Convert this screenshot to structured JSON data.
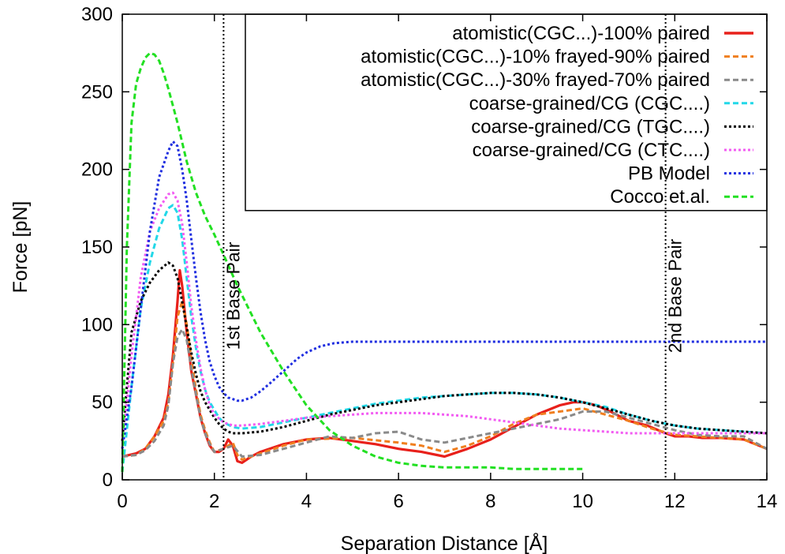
{
  "chart_data": {
    "type": "line",
    "xlabel": "Separation Distance [Å]",
    "ylabel": "Force [pN]",
    "xlim": [
      0,
      14
    ],
    "ylim": [
      0,
      300
    ],
    "xticks": [
      0,
      2,
      4,
      6,
      8,
      10,
      12,
      14
    ],
    "yticks": [
      0,
      50,
      100,
      150,
      200,
      250,
      300
    ],
    "grid": false,
    "legend": "top-right",
    "annotations": [
      {
        "text": "1st Base Pair",
        "x": 2.2
      },
      {
        "text": "2nd Base Pair",
        "x": 11.8
      }
    ],
    "series": [
      {
        "name": "atomistic(CGC...)-100% paired",
        "color": "#e8201b",
        "style": "solid",
        "x": [
          0,
          0.3,
          0.5,
          0.7,
          0.9,
          1.0,
          1.1,
          1.2,
          1.25,
          1.3,
          1.4,
          1.5,
          1.6,
          1.7,
          1.8,
          1.9,
          2.0,
          2.1,
          2.2,
          2.3,
          2.4,
          2.5,
          2.6,
          2.8,
          3.0,
          3.5,
          4.0,
          4.5,
          5.0,
          5.5,
          6.0,
          6.5,
          7.0,
          7.5,
          8.0,
          8.5,
          9.0,
          9.5,
          9.8,
          10.0,
          10.3,
          10.6,
          11.0,
          11.4,
          11.8,
          12.0,
          12.3,
          12.6,
          13.0,
          13.5,
          14.0
        ],
        "y": [
          15,
          17,
          20,
          28,
          40,
          55,
          80,
          115,
          135,
          125,
          95,
          70,
          55,
          40,
          30,
          22,
          18,
          18,
          20,
          26,
          22,
          12,
          11,
          15,
          18,
          23,
          26,
          27,
          25,
          23,
          20,
          18,
          15,
          20,
          26,
          34,
          42,
          48,
          50,
          50,
          48,
          44,
          38,
          35,
          30,
          28,
          28,
          27,
          27,
          26,
          20
        ]
      },
      {
        "name": "atomistic(CGC...)-10% frayed-90% paired",
        "color": "#f07f1f",
        "style": "dashed",
        "x": [
          0,
          0.3,
          0.5,
          0.7,
          0.9,
          1.0,
          1.1,
          1.2,
          1.3,
          1.4,
          1.5,
          1.6,
          1.7,
          1.8,
          1.9,
          2.0,
          2.2,
          2.4,
          2.5,
          2.6,
          3.0,
          3.5,
          4.0,
          5.0,
          6.0,
          6.5,
          7.0,
          7.5,
          8.0,
          8.5,
          9.0,
          9.5,
          10.0,
          10.5,
          11.0,
          11.5,
          12.0,
          12.5,
          13.0,
          13.5,
          14.0
        ],
        "y": [
          15,
          16,
          20,
          28,
          38,
          50,
          75,
          105,
          115,
          100,
          78,
          58,
          42,
          32,
          24,
          18,
          20,
          24,
          16,
          13,
          17,
          22,
          26,
          27,
          24,
          22,
          18,
          22,
          28,
          36,
          42,
          44,
          46,
          42,
          38,
          33,
          29,
          28,
          27,
          26,
          20
        ]
      },
      {
        "name": "atomistic(CGC...)-30% frayed-70% paired",
        "color": "#8a8a8a",
        "style": "dashed",
        "x": [
          0,
          0.3,
          0.5,
          0.7,
          0.9,
          1.0,
          1.1,
          1.2,
          1.3,
          1.4,
          1.5,
          1.6,
          1.7,
          1.8,
          1.9,
          2.0,
          2.2,
          2.4,
          2.6,
          3.0,
          3.5,
          4.0,
          4.5,
          5.0,
          5.5,
          6.0,
          6.5,
          7.0,
          7.5,
          8.0,
          8.5,
          9.0,
          9.5,
          10.0,
          10.5,
          11.0,
          11.5,
          12.0,
          12.5,
          13.0,
          13.5,
          14.0
        ],
        "y": [
          15,
          16,
          19,
          25,
          35,
          48,
          75,
          92,
          97,
          90,
          72,
          55,
          40,
          30,
          23,
          18,
          20,
          22,
          15,
          16,
          20,
          24,
          28,
          27,
          30,
          31,
          26,
          24,
          27,
          30,
          33,
          36,
          39,
          44,
          44,
          40,
          36,
          32,
          29,
          28,
          28,
          20
        ]
      },
      {
        "name": "coarse-grained/CG (CGC....)",
        "color": "#22d8e8",
        "style": "dashed",
        "x": [
          0,
          0.2,
          0.4,
          0.6,
          0.8,
          1.0,
          1.1,
          1.2,
          1.3,
          1.4,
          1.5,
          1.6,
          1.7,
          1.8,
          1.9,
          2.0,
          2.1,
          2.2,
          2.4,
          2.6,
          3.0,
          3.5,
          4.0,
          4.5,
          5.0,
          5.5,
          6.0,
          6.5,
          7.0,
          7.5,
          8.0,
          8.5,
          9.0,
          9.5,
          10.0,
          10.5,
          11.0,
          11.5,
          12.0,
          12.5,
          13.0,
          13.5,
          14.0
        ],
        "y": [
          5,
          60,
          110,
          140,
          162,
          175,
          177,
          172,
          155,
          130,
          105,
          85,
          70,
          58,
          50,
          45,
          40,
          37,
          34,
          33,
          34,
          37,
          40,
          43,
          46,
          49,
          51,
          53,
          54,
          55,
          56,
          56,
          55,
          53,
          50,
          47,
          42,
          38,
          35,
          33,
          32,
          31,
          30
        ]
      },
      {
        "name": "coarse-grained/CG (TGC....)",
        "color": "#000000",
        "style": "dotted",
        "x": [
          0,
          0.2,
          0.4,
          0.6,
          0.8,
          1.0,
          1.1,
          1.2,
          1.3,
          1.4,
          1.5,
          1.6,
          1.7,
          1.8,
          1.9,
          2.0,
          2.1,
          2.2,
          2.3,
          2.4,
          2.6,
          3.0,
          3.5,
          4.0,
          4.5,
          5.0,
          5.5,
          6.0,
          6.5,
          7.0,
          7.5,
          8.0,
          8.5,
          9.0,
          9.5,
          10.0,
          10.5,
          11.0,
          11.5,
          12.0,
          12.5,
          13.0,
          13.5,
          14.0
        ],
        "y": [
          25,
          95,
          115,
          127,
          135,
          140,
          138,
          130,
          115,
          98,
          82,
          68,
          57,
          50,
          45,
          40,
          36,
          33,
          31,
          30,
          30,
          31,
          34,
          38,
          42,
          45,
          48,
          50,
          52,
          54,
          55,
          56,
          56,
          55,
          53,
          50,
          46,
          42,
          38,
          35,
          33,
          32,
          31,
          30
        ]
      },
      {
        "name": "coarse-grained/CG (CTC....)",
        "color": "#f25cf2",
        "style": "dotted",
        "x": [
          0,
          0.2,
          0.4,
          0.6,
          0.8,
          1.0,
          1.1,
          1.2,
          1.3,
          1.4,
          1.5,
          1.6,
          1.7,
          1.8,
          1.9,
          2.0,
          2.2,
          2.4,
          2.6,
          3.0,
          3.5,
          4.0,
          4.5,
          5.0,
          5.5,
          6.0,
          6.5,
          7.0,
          7.5,
          8.0,
          8.5,
          9.0,
          9.5,
          10.0,
          10.5,
          11.0,
          11.5,
          12.0,
          12.5,
          13.0,
          13.5,
          14.0
        ],
        "y": [
          20,
          80,
          130,
          160,
          175,
          184,
          185,
          180,
          165,
          140,
          112,
          90,
          72,
          58,
          48,
          42,
          37,
          35,
          35,
          36,
          38,
          40,
          41,
          42,
          43,
          43,
          43,
          42,
          41,
          39,
          37,
          35,
          33,
          32,
          31,
          30,
          30,
          30,
          30,
          30,
          30,
          30
        ]
      },
      {
        "name": "PB Model",
        "color": "#1f2ee0",
        "style": "dotted",
        "x": [
          0,
          0.2,
          0.4,
          0.6,
          0.8,
          1.0,
          1.1,
          1.2,
          1.3,
          1.4,
          1.5,
          1.6,
          1.7,
          1.8,
          1.9,
          2.0,
          2.1,
          2.2,
          2.3,
          2.4,
          2.5,
          2.6,
          2.8,
          3.0,
          3.2,
          3.5,
          3.8,
          4.0,
          4.3,
          4.6,
          5.0,
          6.0,
          8.0,
          10.0,
          12.0,
          14.0
        ],
        "y": [
          20,
          60,
          110,
          160,
          195,
          212,
          218,
          215,
          200,
          180,
          155,
          130,
          108,
          90,
          76,
          67,
          60,
          56,
          53,
          52,
          51,
          51,
          53,
          57,
          62,
          70,
          78,
          82,
          86,
          88,
          89,
          89,
          89,
          89,
          89,
          89
        ]
      },
      {
        "name": "Cocco et.al.",
        "color": "#22e022",
        "style": "dashed",
        "x": [
          0,
          0.1,
          0.2,
          0.3,
          0.4,
          0.5,
          0.6,
          0.7,
          0.8,
          0.9,
          1.0,
          1.2,
          1.4,
          1.6,
          1.8,
          2.0,
          2.2,
          2.5,
          3.0,
          3.5,
          4.0,
          4.5,
          5.0,
          5.5,
          6.0,
          6.5,
          7.0,
          7.5,
          8.0,
          8.5,
          9.0,
          9.5,
          10.0
        ],
        "y": [
          5,
          150,
          230,
          255,
          265,
          272,
          275,
          274,
          270,
          262,
          252,
          230,
          205,
          185,
          170,
          158,
          145,
          125,
          95,
          70,
          48,
          32,
          22,
          15,
          11,
          9,
          8,
          8,
          8,
          7,
          7,
          7,
          7
        ]
      }
    ]
  }
}
